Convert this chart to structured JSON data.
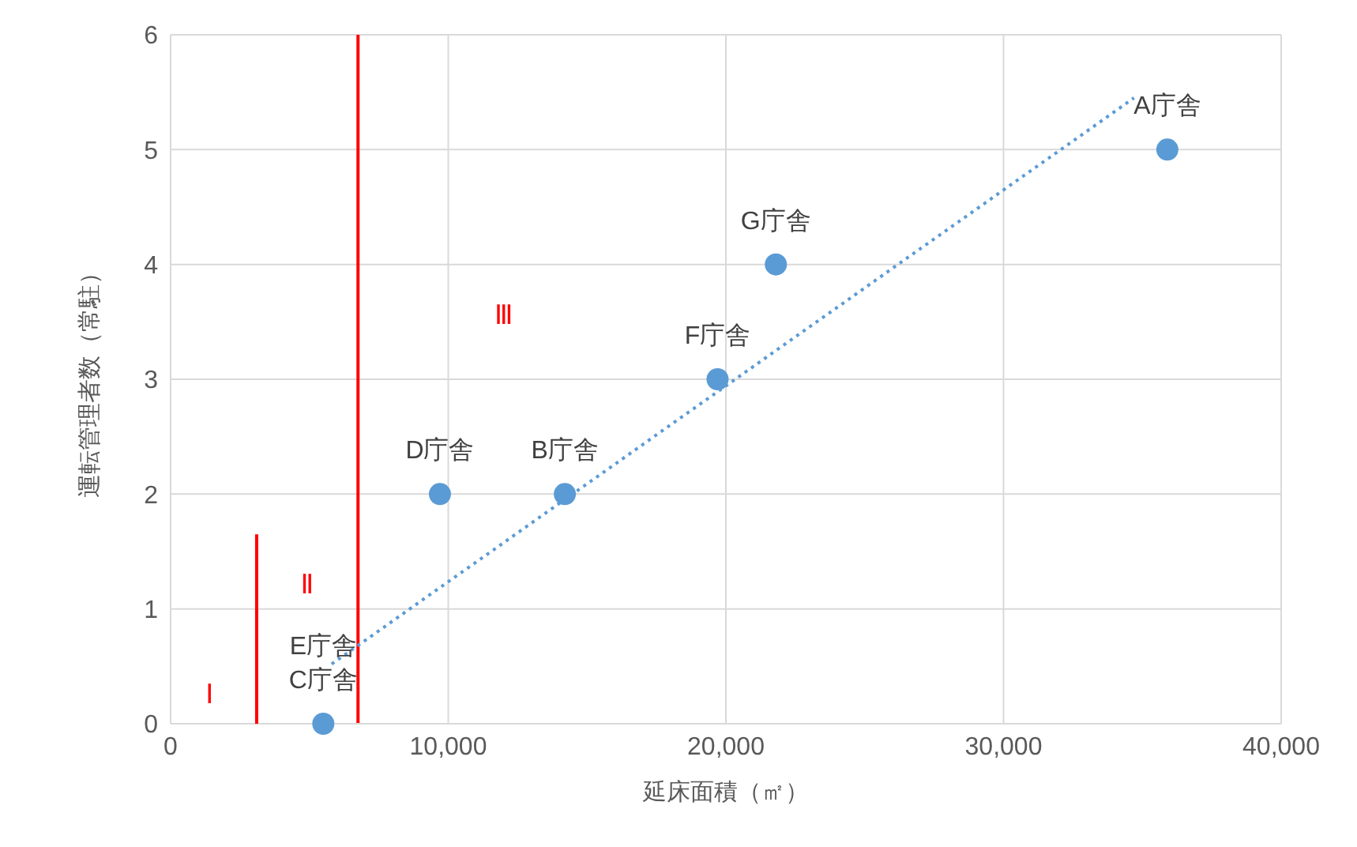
{
  "chart_data": {
    "type": "scatter",
    "xlabel": "延床面積（㎡）",
    "ylabel": "運転管理者数（常駐）",
    "xlim": [
      0,
      40000
    ],
    "xticks": [
      {
        "value": 0,
        "label": "0"
      },
      {
        "value": 10000,
        "label": "10,000"
      },
      {
        "value": 20000,
        "label": "20,000"
      },
      {
        "value": 30000,
        "label": "30,000"
      },
      {
        "value": 40000,
        "label": "40,000"
      }
    ],
    "ylim": [
      0,
      6
    ],
    "yticks": [
      0,
      1,
      2,
      3,
      4,
      5,
      6
    ],
    "grid": true,
    "marker": "circle",
    "series": [
      {
        "color": "#5b9bd5",
        "x": [
          35900,
          14200,
          5500,
          9700,
          19700,
          21800
        ],
        "values": [
          5,
          2,
          0,
          2,
          3,
          4
        ],
        "value_labels": [
          "A庁舎",
          "B庁舎",
          "C庁舎",
          "D庁舎",
          "F庁舎",
          "G庁舎"
        ]
      },
      {
        "type": "line",
        "color": "#5b9bd5",
        "line_style": "dotted",
        "marker": "none",
        "x": [
          5800,
          34700
        ],
        "values": [
          0.52,
          5.45
        ]
      },
      {
        "type": "line",
        "color": "#ff0000",
        "line_style": "solid",
        "marker": "none",
        "x": [
          3100,
          3100
        ],
        "values": [
          0,
          1.65
        ]
      }
    ],
    "ref_lines": [
      {
        "axis": "x",
        "value": 6750,
        "color": "#ff0000",
        "line_style": "solid"
      }
    ],
    "annotations": [
      {
        "text": "E庁舎",
        "x": 5500,
        "y": 0
      },
      "Ⅰ",
      "Ⅱ",
      "Ⅲ"
    ]
  }
}
